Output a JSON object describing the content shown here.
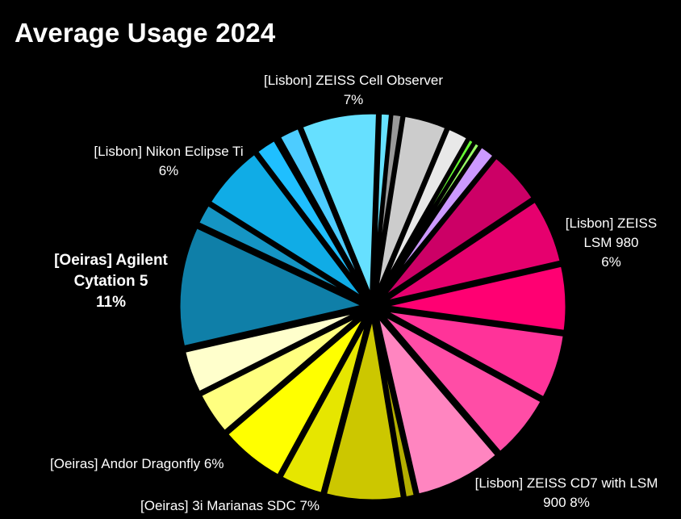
{
  "chart_data": {
    "type": "pie",
    "title": "Average Usage 2024",
    "slices": [
      {
        "value": 1,
        "color": "#66E2FF"
      },
      {
        "value": 1,
        "color": "#999999"
      },
      {
        "value": 4,
        "color": "#CCCCCC"
      },
      {
        "value": 2,
        "color": "#E8E8E8"
      },
      {
        "value": 0.6,
        "color": "#66FF33"
      },
      {
        "value": 0.6,
        "color": "#99FF66"
      },
      {
        "value": 1.5,
        "color": "#CC99FF"
      },
      {
        "value": 5,
        "color": "#CC0066"
      },
      {
        "value": 6,
        "color": "#E6006E"
      },
      {
        "value": 6,
        "color": "#FF0072"
      },
      {
        "value": 6,
        "color": "#FF3399"
      },
      {
        "value": 6,
        "color": "#FF4DA6"
      },
      {
        "value": 8,
        "color": "#FF85C0"
      },
      {
        "value": 1,
        "color": "#B3AE00"
      },
      {
        "value": 7,
        "color": "#CCC700"
      },
      {
        "value": 4,
        "color": "#E6E600"
      },
      {
        "value": 6,
        "color": "#FFFF00"
      },
      {
        "value": 4,
        "color": "#FFFF80"
      },
      {
        "value": 4,
        "color": "#FFFFCC"
      },
      {
        "value": 11,
        "color": "#0F7FA8"
      },
      {
        "value": 2,
        "color": "#1595C4"
      },
      {
        "value": 6,
        "color": "#10ACE6"
      },
      {
        "value": 2,
        "color": "#1FBFFF"
      },
      {
        "value": 0.3,
        "color": "#2EB8E6"
      },
      {
        "value": 2,
        "color": "#4DCCFF"
      },
      {
        "value": 7,
        "color": "#66E0FF"
      }
    ],
    "labels": {
      "zeiss_cell_observer": {
        "name": "[Lisbon] ZEISS Cell Observer",
        "pct": "7%"
      },
      "nikon_eclipse": {
        "name": "[Lisbon] Nikon Eclipse Ti",
        "pct": "6%"
      },
      "agilent_line1": "[Oeiras] Agilent",
      "agilent_line2": "Cytation 5",
      "agilent_pct": "11%",
      "lsm980_line1": "[Lisbon] ZEISS",
      "lsm980_line2": "LSM 980",
      "lsm980_pct": "6%",
      "cd7_line1": "[Lisbon] ZEISS CD7 with LSM",
      "cd7_line2": "900  8%",
      "andor": "[Oeiras] Andor Dragonfly  6%",
      "marianas": "[Oeiras] 3i Marianas SDC  7%"
    }
  }
}
